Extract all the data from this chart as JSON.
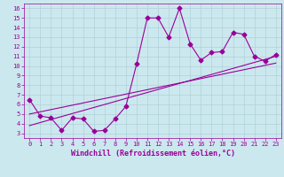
{
  "xlabel": "Windchill (Refroidissement éolien,°C)",
  "background_color": "#cce8ef",
  "grid_color": "#b0d0d8",
  "line_color": "#990099",
  "xlim": [
    -0.5,
    23.5
  ],
  "ylim": [
    2.5,
    16.5
  ],
  "xticks": [
    0,
    1,
    2,
    3,
    4,
    5,
    6,
    7,
    8,
    9,
    10,
    11,
    12,
    13,
    14,
    15,
    16,
    17,
    18,
    19,
    20,
    21,
    22,
    23
  ],
  "yticks": [
    3,
    4,
    5,
    6,
    7,
    8,
    9,
    10,
    11,
    12,
    13,
    14,
    15,
    16
  ],
  "series1_x": [
    0,
    1,
    2,
    3,
    4,
    5,
    6,
    7,
    8,
    9,
    10,
    11,
    12,
    13,
    14,
    15,
    16,
    17,
    18,
    19,
    20,
    21,
    22,
    23
  ],
  "series1_y": [
    6.5,
    4.8,
    4.6,
    3.3,
    4.6,
    4.5,
    3.2,
    3.3,
    4.5,
    5.8,
    10.2,
    15.0,
    15.0,
    13.0,
    16.0,
    12.3,
    10.6,
    11.4,
    11.5,
    13.5,
    13.3,
    11.0,
    10.5,
    11.2
  ],
  "series2_x": [
    0,
    23
  ],
  "series2_y": [
    5.0,
    10.3
  ],
  "series3_x": [
    0,
    23
  ],
  "series3_y": [
    3.8,
    11.0
  ],
  "marker_size": 2.5,
  "line_width": 0.8,
  "tick_fontsize": 5.0,
  "label_fontsize": 6.0
}
